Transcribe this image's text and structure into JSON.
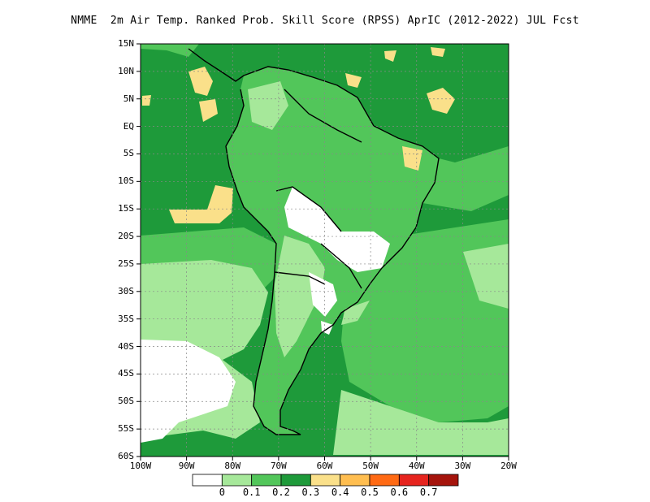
{
  "title": "NMME  2m Air Temp. Ranked Prob. Skill Score (RPSS) AprIC (2012-2022) JUL Fcst",
  "map": {
    "lat_labels": [
      "15N",
      "10N",
      "5N",
      "EQ",
      "5S",
      "10S",
      "15S",
      "20S",
      "25S",
      "30S",
      "35S",
      "40S",
      "45S",
      "50S",
      "55S",
      "60S"
    ],
    "lon_labels": [
      "100W",
      "90W",
      "80W",
      "70W",
      "60W",
      "50W",
      "40W",
      "30W",
      "20W"
    ],
    "colors": {
      "ocean": "#1e9a3a",
      "land": "#52c65a",
      "light": "#a6e89a",
      "yellow": "#fae08a",
      "white": "#ffffff",
      "coast": "#000000"
    }
  },
  "colorbar": {
    "colors": [
      "#ffffff",
      "#a6e89a",
      "#52c65a",
      "#1e9a3a",
      "#fae08a",
      "#ffbe50",
      "#ff6a14",
      "#e6241e",
      "#a5140c"
    ],
    "labels": [
      "0",
      "0.1",
      "0.2",
      "0.3",
      "0.4",
      "0.5",
      "0.6",
      "0.7"
    ]
  }
}
